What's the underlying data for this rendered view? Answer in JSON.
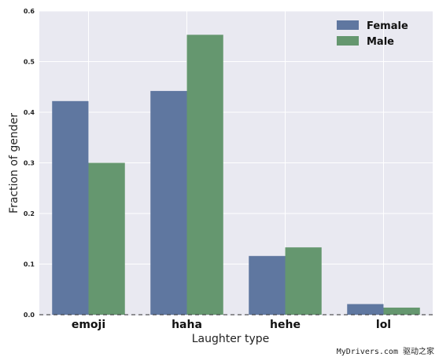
{
  "chart_data": {
    "type": "bar",
    "title": "",
    "xlabel": "Laughter type",
    "ylabel": "Fraction of gender",
    "categories": [
      "emoji",
      "haha",
      "hehe",
      "lol"
    ],
    "series": [
      {
        "name": "Female",
        "values": [
          0.422,
          0.442,
          0.116,
          0.021
        ],
        "color": "#5f77a0"
      },
      {
        "name": "Male",
        "values": [
          0.3,
          0.553,
          0.133,
          0.014
        ],
        "color": "#65976f"
      }
    ],
    "ylim": [
      0,
      0.6
    ],
    "yticks": [
      "0.0",
      "0.1",
      "0.2",
      "0.3",
      "0.4",
      "0.5",
      "0.6"
    ],
    "grid": true,
    "legend_position": "top-right",
    "baseline": "dashed",
    "background_color": "#e9e9f1"
  },
  "watermark": "MyDrivers.com 驱动之家"
}
